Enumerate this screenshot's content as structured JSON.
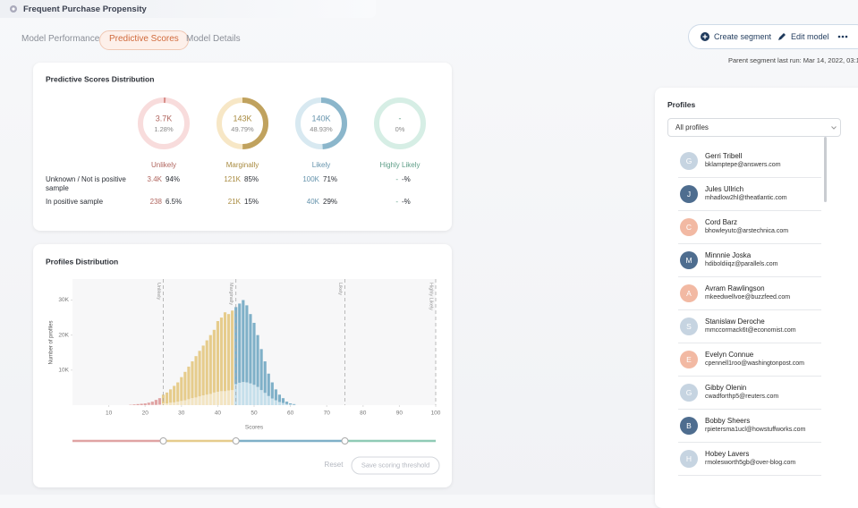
{
  "header": {
    "title": "Frequent Purchase Propensity"
  },
  "tabs": [
    "Model Performance",
    "Predictive Scores",
    "Model Details"
  ],
  "active_tab": 1,
  "actions": {
    "create": "Create segment",
    "edit": "Edit model"
  },
  "last_run": "Parent segment last run: Mar 14, 2022, 03:1",
  "scores_card": {
    "title": "Predictive Scores Distribution",
    "groups": [
      {
        "label": "Unlikely",
        "count_label": "3.7K",
        "value": 1.28,
        "value_label": "1.28%",
        "color": "#b0655e",
        "arc": "#d98f8a",
        "track": "#f8dcdc"
      },
      {
        "label": "Marginally",
        "count_label": "143K",
        "value": 49.79,
        "value_label": "49.79%",
        "color": "#a88a3f",
        "arc": "#c0a25e",
        "track": "#f7e7c6"
      },
      {
        "label": "Likely",
        "count_label": "140K",
        "value": 48.93,
        "value_label": "48.93%",
        "color": "#6593ac",
        "arc": "#8bb6cb",
        "track": "#d8e9f1"
      },
      {
        "label": "Highly Likely",
        "count_label": "-",
        "value": 0,
        "value_label": "0%",
        "color": "#5f9e88",
        "arc": "#8fcbb5",
        "track": "#d6eee5"
      }
    ],
    "rows": [
      {
        "label": "Unknown / Not is positive sample",
        "cells": [
          {
            "count": "3.4K",
            "share": "94%"
          },
          {
            "count": "121K",
            "share": "85%"
          },
          {
            "count": "100K",
            "share": "71%"
          },
          {
            "count": "-",
            "share": "-%"
          }
        ]
      },
      {
        "label": "In positive sample",
        "cells": [
          {
            "count": "238",
            "share": "6.5%"
          },
          {
            "count": "21K",
            "share": "15%"
          },
          {
            "count": "40K",
            "share": "29%"
          },
          {
            "count": "-",
            "share": "-%"
          }
        ]
      }
    ]
  },
  "chart_data": {
    "type": "bar",
    "stacked": true,
    "title": "Profiles Distribution",
    "x_label": "Scores",
    "y_label": "Number of profiles",
    "x": [
      16,
      17,
      18,
      19,
      20,
      21,
      22,
      23,
      24,
      25,
      26,
      27,
      28,
      29,
      30,
      31,
      32,
      33,
      34,
      35,
      36,
      37,
      38,
      39,
      40,
      41,
      42,
      43,
      44,
      45,
      46,
      47,
      48,
      49,
      50,
      51,
      52,
      53,
      54,
      55,
      56,
      57,
      58,
      59,
      60,
      61
    ],
    "series": [
      {
        "values": [
          0,
          0,
          0,
          0,
          0,
          100,
          100,
          100,
          200,
          500,
          500,
          700,
          800,
          1000,
          1200,
          1400,
          1700,
          2000,
          2200,
          2500,
          2800,
          3000,
          3200,
          3600,
          3800,
          4000,
          4000,
          4200,
          4300,
          6000,
          6400,
          6600,
          6500,
          6200,
          5800,
          5200,
          4300,
          3500,
          2600,
          1900,
          1400,
          900,
          600,
          300,
          200,
          100
        ]
      },
      {
        "values": [
          100,
          200,
          300,
          400,
          500,
          600,
          900,
          1400,
          1800,
          2500,
          3100,
          3800,
          4700,
          5500,
          6800,
          8100,
          9300,
          10500,
          11800,
          13000,
          14200,
          15500,
          16800,
          17900,
          20200,
          21000,
          22500,
          21800,
          22700,
          22000,
          22600,
          23400,
          22000,
          19800,
          17700,
          14800,
          11700,
          9000,
          6400,
          4600,
          3100,
          2100,
          1400,
          700,
          300,
          200
        ]
      }
    ],
    "zones": [
      {
        "label": "Unlikely",
        "max": 25,
        "color": "#e0a3a3",
        "light_color": "#f2d3d3"
      },
      {
        "label": "Marginally",
        "max": 45,
        "color": "#e6cc8c",
        "light_color": "#f3e5c3"
      },
      {
        "label": "Likely",
        "max": 75,
        "color": "#7fb0c8",
        "light_color": "#c5dfeb"
      },
      {
        "label": "Highly Likely",
        "max": 100,
        "color": "#8fcbb5",
        "light_color": "#cfe9df"
      }
    ],
    "xlim": [
      0,
      100
    ],
    "ylim": [
      0,
      36000
    ],
    "xticks": [
      10,
      20,
      30,
      40,
      50,
      60,
      70,
      80,
      90,
      100
    ],
    "yticks": [
      {
        "value": 10000,
        "label": "10K"
      },
      {
        "value": 20000,
        "label": "20K"
      },
      {
        "value": 30000,
        "label": "30K"
      }
    ],
    "grid": false
  },
  "controls": {
    "reset": "Reset",
    "save": "Save scoring threshold"
  },
  "profiles_panel": {
    "title": "Profiles",
    "filter": "All profiles",
    "profiles": [
      {
        "initial": "G",
        "name": "Gerri Tribell",
        "email": "bklamptepe@answers.com",
        "color": "#c6d4e1"
      },
      {
        "initial": "J",
        "name": "Jules Ullrich",
        "email": "mhadlow2hl@theatlantic.com",
        "color": "#4e6d8f"
      },
      {
        "initial": "C",
        "name": "Cord Barz",
        "email": "bhowleyutc@arstechnica.com",
        "color": "#f2b9a3"
      },
      {
        "initial": "M",
        "name": "Minnnie Joska",
        "email": "hdiboldiiqz@parallels.com",
        "color": "#4e6d8f"
      },
      {
        "initial": "A",
        "name": "Avram Rawlingson",
        "email": "mkeedwellvoe@buzzfeed.com",
        "color": "#f2b9a3"
      },
      {
        "initial": "S",
        "name": "Stanislaw Deroche",
        "email": "mmccormack6t@economist.com",
        "color": "#c6d4e1"
      },
      {
        "initial": "E",
        "name": "Evelyn Connue",
        "email": "cpennell1roo@washingtonpost.com",
        "color": "#f2b9a3"
      },
      {
        "initial": "G",
        "name": "Gibby Olenin",
        "email": "cwadforthp5@reuters.com",
        "color": "#c6d4e1"
      },
      {
        "initial": "B",
        "name": "Bobby Sheers",
        "email": "rpietersma1ucl@howstuffworks.com",
        "color": "#4e6d8f"
      },
      {
        "initial": "H",
        "name": "Hobey Lavers",
        "email": "rmolesworth5gb@over-blog.com",
        "color": "#c6d4e1"
      }
    ]
  }
}
